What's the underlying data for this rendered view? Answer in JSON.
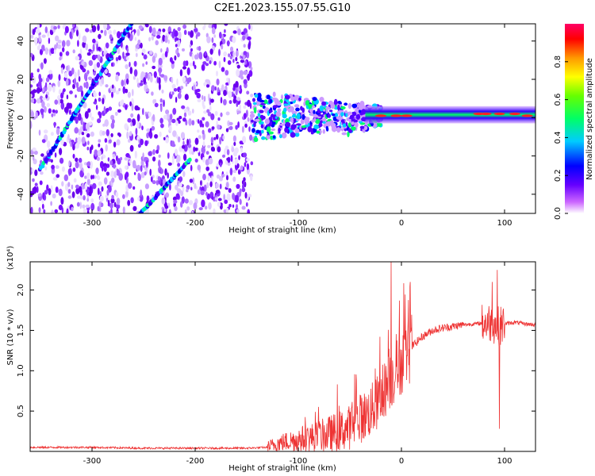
{
  "title": "C2E1.2023.155.07.55.G10",
  "chart_data": [
    {
      "type": "heatmap",
      "name": "spectrogram",
      "xlabel": "Height of straight line (km)",
      "ylabel": "Frequency (Hz)",
      "xlim": [
        -360,
        130
      ],
      "ylim": [
        -50,
        49
      ],
      "xticks": [
        -300,
        -200,
        -100,
        0,
        100
      ],
      "yticks": [
        -40,
        -20,
        0,
        20,
        40
      ],
      "colorbar": {
        "label": "Normalized spectral amplitude",
        "range": [
          0,
          1
        ],
        "ticks": [
          "0.0",
          "0.2",
          "0.4",
          "0.6",
          "0.8"
        ],
        "tick_values": [
          0.0,
          0.2,
          0.4,
          0.6,
          0.8
        ],
        "colors": [
          "#ffffff",
          "#cc66ff",
          "#6600ff",
          "#0000ff",
          "#00ccff",
          "#00ff66",
          "#66ff00",
          "#ffff00",
          "#ff9900",
          "#ff0000",
          "#ff0066"
        ]
      },
      "features": [
        {
          "name": "diagonal-track-upper",
          "from": [
            -350,
            -27
          ],
          "to": [
            -262,
            49
          ]
        },
        {
          "name": "diagonal-track-lower",
          "from": [
            -253,
            -50
          ],
          "to": [
            -205,
            -22
          ]
        },
        {
          "name": "noise-region",
          "x_range": [
            -360,
            -145
          ],
          "y_range": [
            -50,
            49
          ]
        },
        {
          "name": "carrier-band",
          "x_range": [
            -145,
            130
          ],
          "y_center": 1
        }
      ]
    },
    {
      "type": "line",
      "name": "snr",
      "xlabel": "Height of straight line (km)",
      "ylabel": "SNR (10 * v/v)",
      "y_multiplier": "(x10⁴)",
      "xlim": [
        -360,
        130
      ],
      "ylim": [
        0,
        2.35
      ],
      "xticks": [
        -300,
        -200,
        -100,
        0,
        100
      ],
      "yticks": [
        0.5,
        1.0,
        1.5,
        2.0
      ],
      "yticklabels": [
        "0.5",
        "1.0",
        "1.5",
        "2.0"
      ],
      "color": "#ee3333",
      "series": [
        {
          "name": "SNR",
          "x": [
            -360,
            -300,
            -250,
            -200,
            -150,
            -130,
            -120,
            -100,
            -80,
            -60,
            -50,
            -40,
            -30,
            -20,
            -15,
            -10,
            -5,
            0,
            10,
            20,
            30,
            40,
            50,
            60,
            70,
            80,
            85,
            90,
            95,
            100,
            110,
            120,
            130
          ],
          "y": [
            0.05,
            0.05,
            0.04,
            0.04,
            0.04,
            0.05,
            0.1,
            0.15,
            0.18,
            0.25,
            0.3,
            0.4,
            0.5,
            0.65,
            0.8,
            0.9,
            1.0,
            1.1,
            1.3,
            1.42,
            1.5,
            1.53,
            1.55,
            1.57,
            1.58,
            1.59,
            1.6,
            1.58,
            1.55,
            1.58,
            1.6,
            1.58,
            1.57
          ],
          "spikes": [
            {
              "x": -10,
              "y": 2.35
            },
            {
              "x": 93,
              "y": 2.25
            },
            {
              "x": 95,
              "y": 0.28
            },
            {
              "x": 88,
              "y": 2.1
            }
          ]
        }
      ]
    }
  ]
}
